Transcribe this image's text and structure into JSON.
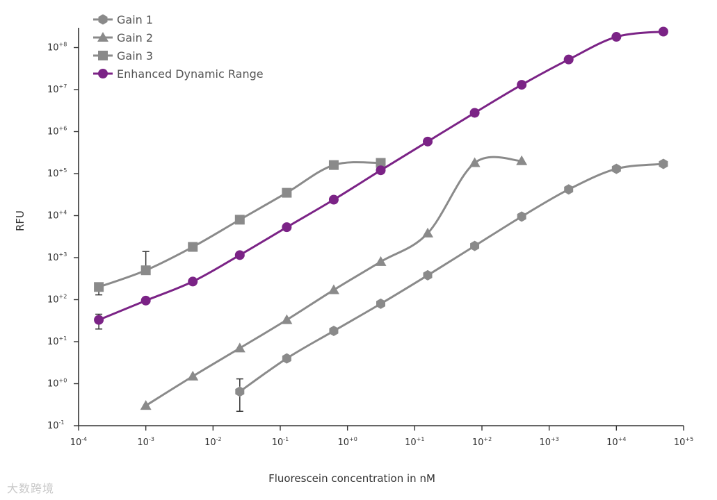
{
  "chart_data": {
    "type": "line",
    "xscale": "log",
    "yscale": "log",
    "xlabel": "Fluorescein concentration in nM",
    "ylabel": "RFU",
    "xlim": [
      0.0001,
      100000
    ],
    "ylim": [
      0.1,
      500000000
    ],
    "x_ticks": [
      {
        "base": "10",
        "exp": "-4",
        "value": 0.0001
      },
      {
        "base": "10",
        "exp": "-3",
        "value": 0.001
      },
      {
        "base": "10",
        "exp": "-2",
        "value": 0.01
      },
      {
        "base": "10",
        "exp": "-1",
        "value": 0.1
      },
      {
        "base": "10",
        "exp": "+0",
        "value": 1
      },
      {
        "base": "10",
        "exp": "+1",
        "value": 10
      },
      {
        "base": "10",
        "exp": "+2",
        "value": 100
      },
      {
        "base": "10",
        "exp": "+3",
        "value": 1000
      },
      {
        "base": "10",
        "exp": "+4",
        "value": 10000
      },
      {
        "base": "10",
        "exp": "+5",
        "value": 100000
      }
    ],
    "y_ticks": [
      {
        "base": "10",
        "exp": "-1",
        "value": 0.1
      },
      {
        "base": "10",
        "exp": "+0",
        "value": 1
      },
      {
        "base": "10",
        "exp": "+1",
        "value": 10
      },
      {
        "base": "10",
        "exp": "+2",
        "value": 100
      },
      {
        "base": "10",
        "exp": "+3",
        "value": 1000
      },
      {
        "base": "10",
        "exp": "+4",
        "value": 10000
      },
      {
        "base": "10",
        "exp": "+5",
        "value": 100000
      },
      {
        "base": "10",
        "exp": "+6",
        "value": 1000000
      },
      {
        "base": "10",
        "exp": "+7",
        "value": 10000000
      },
      {
        "base": "10",
        "exp": "+8",
        "value": 100000000
      }
    ],
    "grid": false,
    "legend_position": "top-left",
    "series": [
      {
        "name": "Gain 1",
        "marker": "hexagon",
        "color": "#8a8a8a",
        "x": [
          0.025,
          0.125,
          0.625,
          3.125,
          15.6,
          78,
          390,
          1950,
          10000,
          50000
        ],
        "y": [
          0.65,
          4,
          18,
          80,
          380,
          1900,
          9500,
          42000,
          130000,
          170000
        ],
        "error_bars": [
          {
            "index": 0,
            "low": 0.22,
            "high": 1.3
          }
        ]
      },
      {
        "name": "Gain 2",
        "marker": "triangle",
        "color": "#8a8a8a",
        "x": [
          0.001,
          0.005,
          0.025,
          0.125,
          0.625,
          3.125,
          15.6,
          78,
          390
        ],
        "y": [
          0.3,
          1.5,
          7,
          33,
          170,
          800,
          3800,
          180000,
          200000
        ],
        "error_bars": []
      },
      {
        "name": "Gain 3",
        "marker": "square",
        "color": "#8a8a8a",
        "x": [
          0.0002,
          0.001,
          0.005,
          0.025,
          0.125,
          0.625,
          3.125
        ],
        "y": [
          200,
          500,
          1800,
          8000,
          35000,
          160000,
          180000
        ],
        "error_bars": [
          {
            "index": 0,
            "low": 130,
            "high": 230
          },
          {
            "index": 1,
            "low": 500,
            "high": 1400
          }
        ]
      },
      {
        "name": "Enhanced Dynamic Range",
        "marker": "circle",
        "color": "#7b2386",
        "x": [
          0.0002,
          0.001,
          0.005,
          0.025,
          0.125,
          0.625,
          3.125,
          15.6,
          78,
          390,
          1950,
          10000,
          50000
        ],
        "y": [
          33,
          95,
          270,
          1150,
          5300,
          24000,
          120000,
          580000,
          2800000,
          13000000,
          52000000,
          180000000,
          240000000
        ],
        "error_bars": [
          {
            "index": 0,
            "low": 20,
            "high": 45
          }
        ]
      }
    ]
  },
  "watermark_text": "大数跨境"
}
